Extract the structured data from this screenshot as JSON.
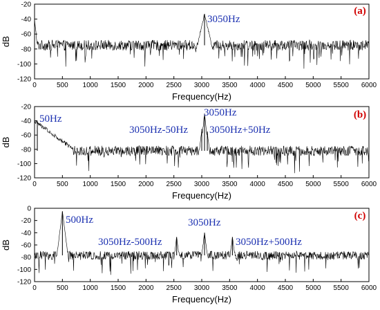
{
  "chart_data": [
    {
      "type": "line",
      "panel_label": "(a)",
      "xlabel": "Frequency(Hz)",
      "ylabel": "dB",
      "xlim": [
        0,
        6000
      ],
      "ylim": [
        -120,
        -20
      ],
      "xticks": [
        "0",
        "500",
        "1000",
        "1500",
        "2000",
        "2500",
        "3000",
        "3500",
        "4000",
        "4500",
        "5000",
        "5500",
        "6000"
      ],
      "yticks": [
        "-20",
        "-40",
        "-60",
        "-80",
        "-100",
        "-120"
      ],
      "noise_floor_db": -75,
      "peaks": [
        {
          "x": 0,
          "y": -40
        },
        {
          "x": 3050,
          "y": -33
        }
      ],
      "annotations": [
        {
          "text": "3050Hz",
          "x": 3050,
          "y": -33
        }
      ],
      "grid": false
    },
    {
      "type": "line",
      "panel_label": "(b)",
      "xlabel": "Frequency(Hz)",
      "ylabel": "dB",
      "xlim": [
        0,
        6000
      ],
      "ylim": [
        -120,
        -20
      ],
      "xticks": [
        "0",
        "500",
        "1000",
        "1500",
        "2000",
        "2500",
        "3000",
        "3500",
        "4000",
        "4500",
        "5000",
        "5500",
        "6000"
      ],
      "yticks": [
        "-20",
        "-40",
        "-60",
        "-80",
        "-100",
        "-120"
      ],
      "noise_floor_db": -82,
      "peaks": [
        {
          "x": 50,
          "y": -40
        },
        {
          "x": 3000,
          "y": -52
        },
        {
          "x": 3050,
          "y": -30
        },
        {
          "x": 3100,
          "y": -55
        }
      ],
      "annotations": [
        {
          "text": "50Hz",
          "x": 50,
          "y": -40
        },
        {
          "text": "3050Hz",
          "x": 3050,
          "y": -30
        },
        {
          "text": "3050Hz-50Hz",
          "x": 3000,
          "y": -52
        },
        {
          "text": "3050Hz+50Hz",
          "x": 3100,
          "y": -52
        }
      ],
      "grid": false
    },
    {
      "type": "line",
      "panel_label": "(c)",
      "xlabel": "Frequency(Hz)",
      "ylabel": "dB",
      "xlim": [
        0,
        6000
      ],
      "ylim": [
        -120,
        0
      ],
      "xticks": [
        "0",
        "500",
        "1000",
        "1500",
        "2000",
        "2500",
        "3000",
        "3500",
        "4000",
        "4500",
        "5000",
        "5500",
        "6000"
      ],
      "yticks": [
        "0",
        "-20",
        "-40",
        "-60",
        "-80",
        "-100",
        "-120"
      ],
      "noise_floor_db": -77,
      "peaks": [
        {
          "x": 500,
          "y": -5
        },
        {
          "x": 2550,
          "y": -47
        },
        {
          "x": 3050,
          "y": -40
        },
        {
          "x": 3550,
          "y": -47
        }
      ],
      "annotations": [
        {
          "text": "500Hz",
          "x": 500,
          "y": -5
        },
        {
          "text": "3050Hz",
          "x": 3050,
          "y": -40
        },
        {
          "text": "3050Hz-500Hz",
          "x": 2550,
          "y": -47
        },
        {
          "text": "3050Hz+500Hz",
          "x": 3550,
          "y": -47
        }
      ],
      "grid": false
    }
  ]
}
